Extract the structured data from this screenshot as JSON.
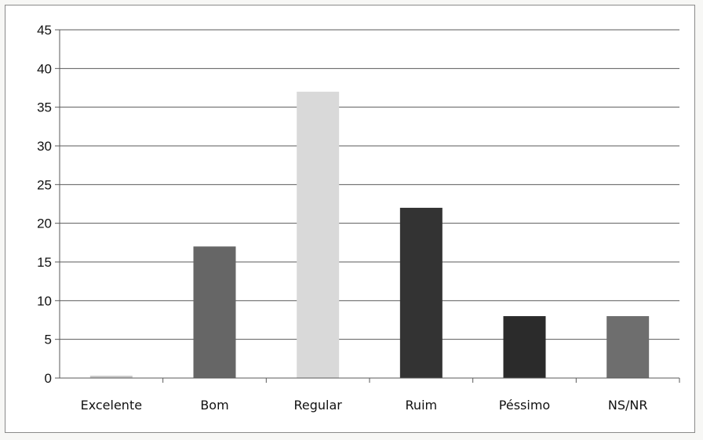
{
  "chart_data": {
    "type": "bar",
    "title": "",
    "xlabel": "",
    "ylabel": "",
    "categories": [
      "Excelente",
      "Bom",
      "Regular",
      "Ruim",
      "Péssimo",
      "NS/NR"
    ],
    "values": [
      0.3,
      17,
      37,
      22,
      8,
      8
    ],
    "colors": [
      "#c8c8c8",
      "#666666",
      "#d9d9d9",
      "#333333",
      "#2b2b2b",
      "#6e6e6e"
    ],
    "ylim": [
      0,
      45
    ],
    "yticks": [
      0,
      5,
      10,
      15,
      20,
      25,
      30,
      35,
      40,
      45
    ],
    "grid": true,
    "legend": "none"
  }
}
